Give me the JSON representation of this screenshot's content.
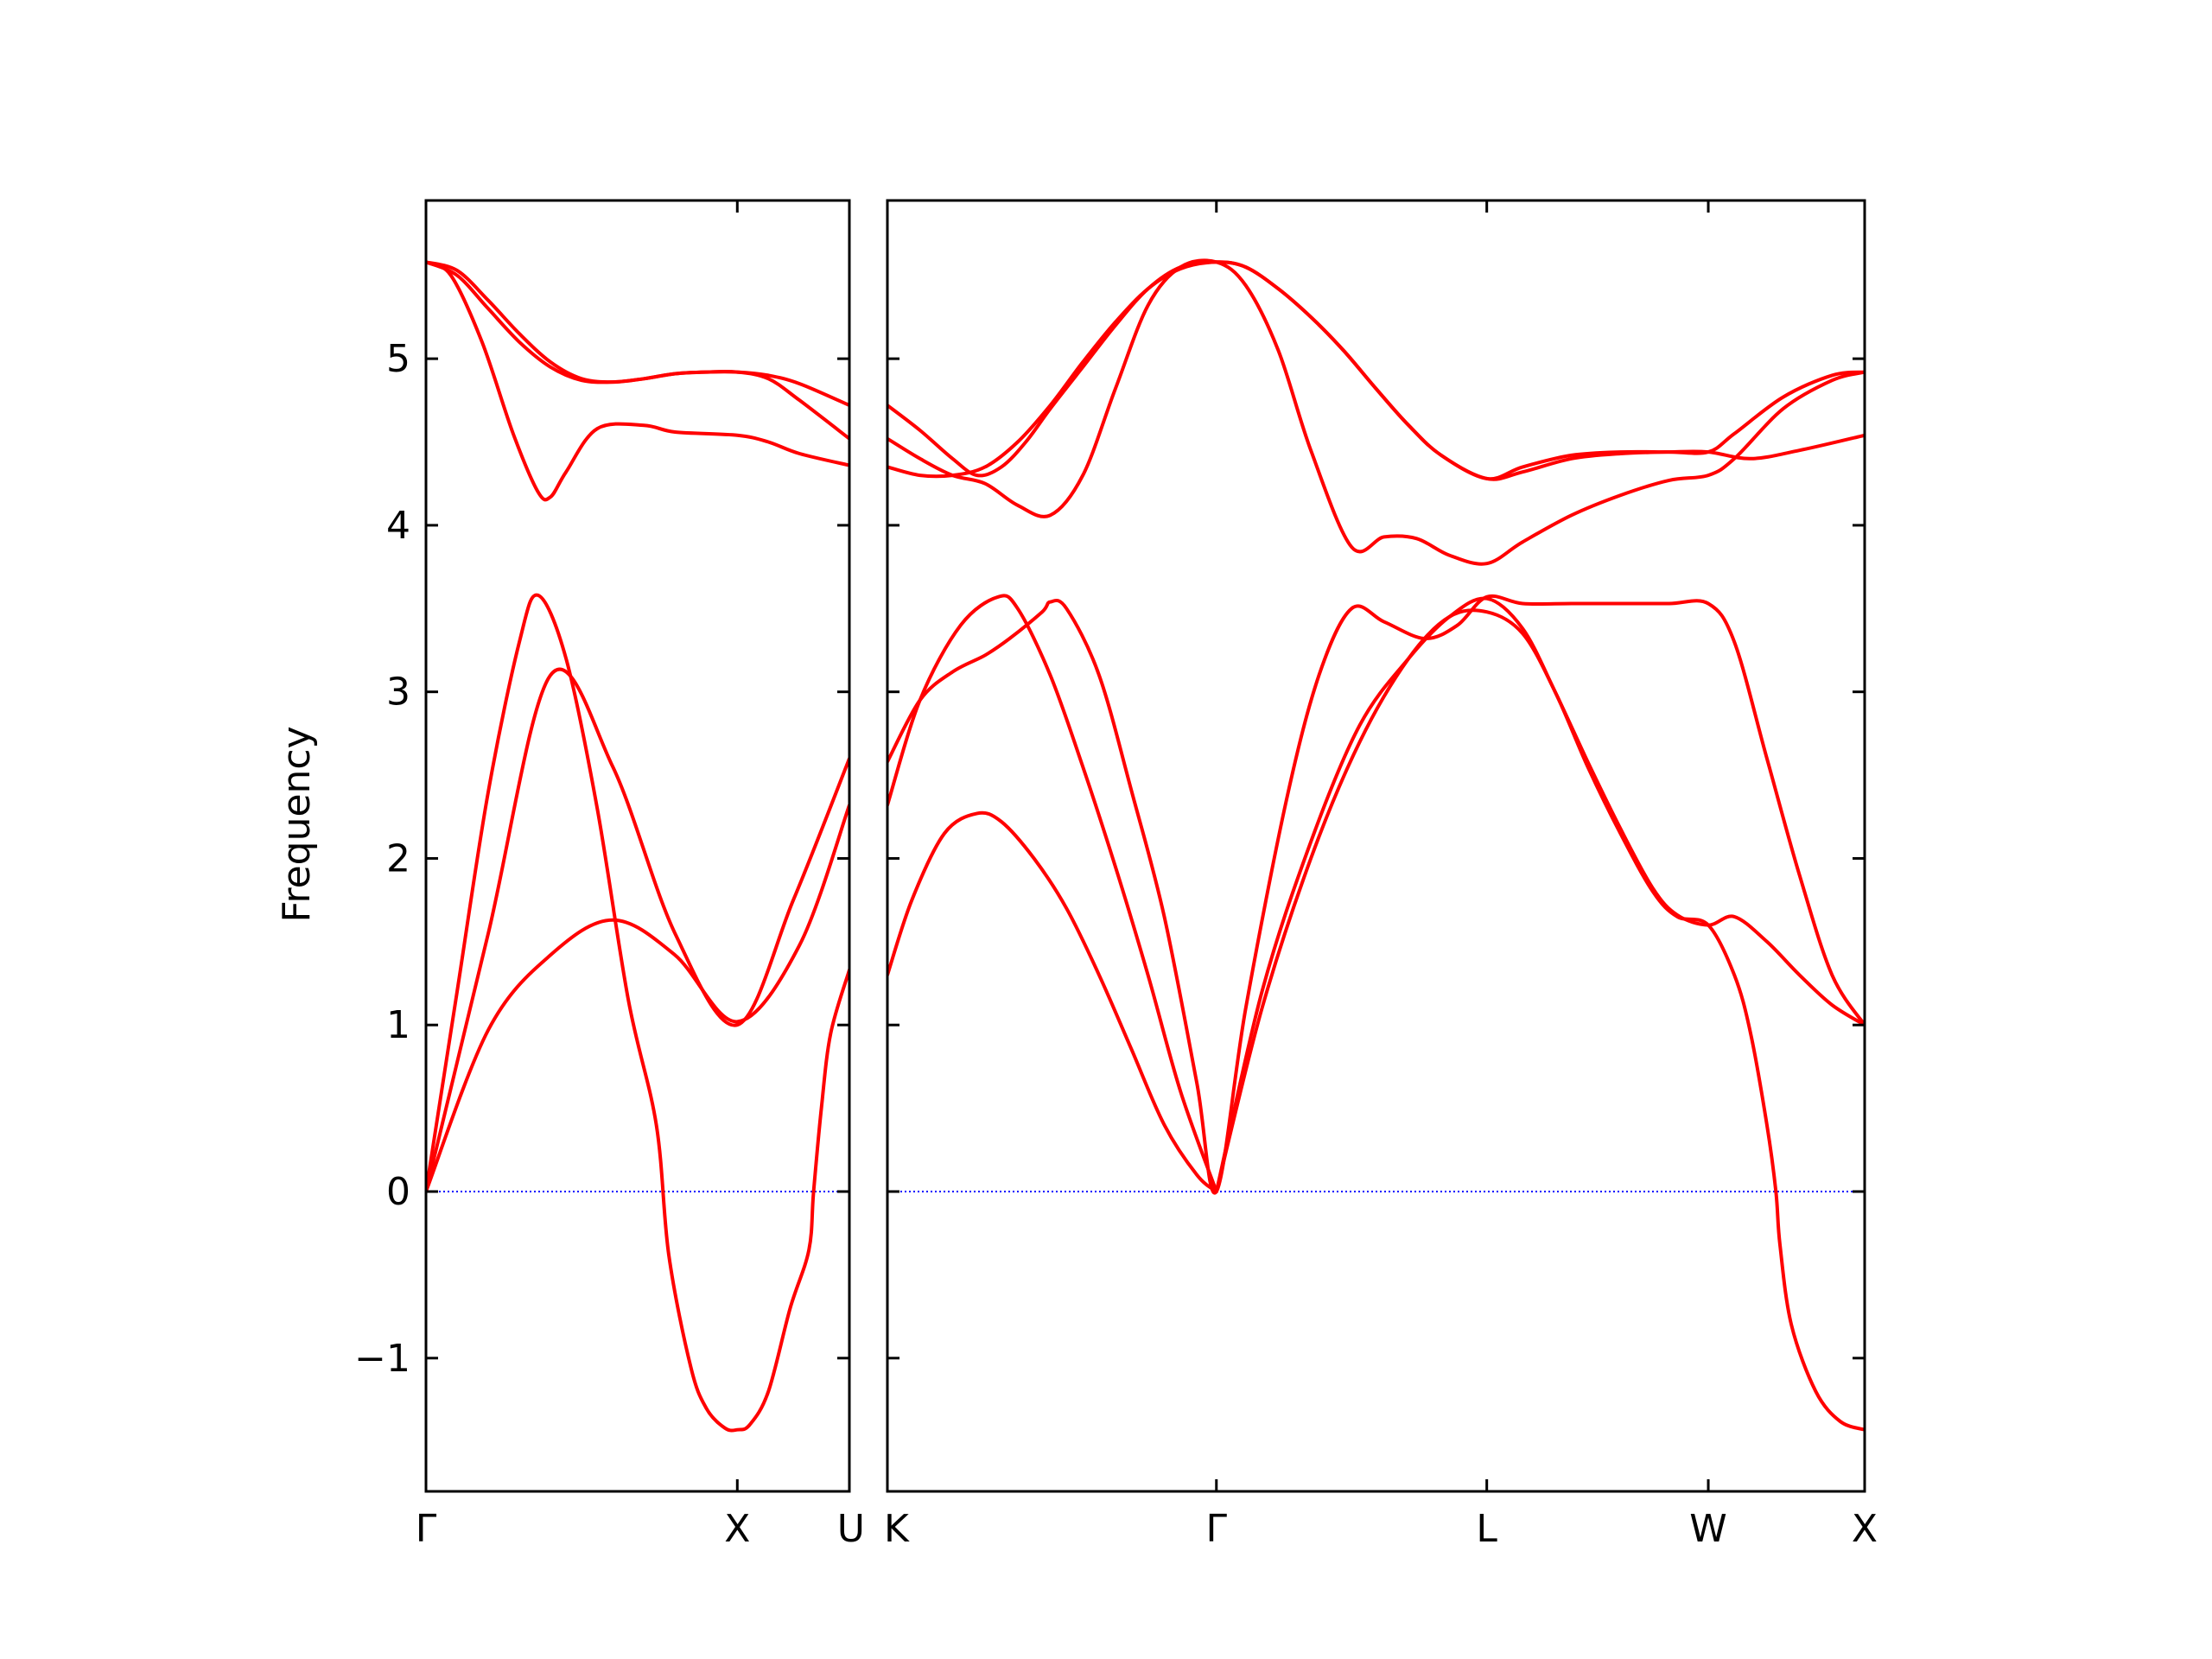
{
  "chart_data": {
    "type": "line",
    "ylabel": "Frequency",
    "ylim": [
      -1.8,
      5.95
    ],
    "yticks": [
      -1,
      0,
      1,
      2,
      3,
      4,
      5
    ],
    "ytick_labels": [
      "−1",
      "0",
      "1",
      "2",
      "3",
      "4",
      "5"
    ],
    "line_color": "#ff0000",
    "zero_line_color": "#0000ff",
    "panels": [
      {
        "name": "panel-gamma-x-u",
        "xlim": [
          0,
          1.36
        ],
        "xticks": [
          {
            "pos": 0,
            "label": "Γ",
            "anchor": "middle"
          },
          {
            "pos": 1.0,
            "label": "X",
            "anchor": "middle"
          },
          {
            "pos": 1.36,
            "label": "U",
            "anchor": "end"
          }
        ],
        "bands": [
          {
            "x": [
              0,
              0.2,
              0.4,
              0.6,
              0.8,
              1.0,
              1.2,
              1.36
            ],
            "y": [
              0,
              0.97,
              1.42,
              1.63,
              1.42,
              1.02,
              1.48,
              2.32
            ]
          },
          {
            "x": [
              0,
              0.1,
              0.2,
              0.3,
              0.36,
              0.45,
              0.55,
              0.65,
              0.74,
              0.78,
              0.85,
              0.9,
              0.96,
              1.0,
              1.04,
              1.1,
              1.17,
              1.23,
              1.245,
              1.27,
              1.3,
              1.36
            ],
            "y": [
              0,
              1.2,
              2.4,
              3.3,
              3.58,
              3.2,
              2.3,
              1.15,
              0.4,
              -0.38,
              -1.05,
              -1.3,
              -1.42,
              -1.43,
              -1.4,
              -1.2,
              -0.7,
              -0.35,
              0,
              0.5,
              0.95,
              1.33
            ]
          },
          {
            "x": [
              0,
              0.2,
              0.4,
              0.6,
              0.8,
              1.0,
              1.18,
              1.36
            ],
            "y": [
              0,
              1.55,
              3.1,
              2.55,
              1.55,
              1.0,
              1.75,
              2.6
            ]
          },
          {
            "x": [
              0,
              0.08,
              0.18,
              0.28,
              0.36,
              0.4,
              0.45,
              0.55,
              0.7,
              0.8,
              1.0,
              1.1,
              1.2,
              1.36
            ],
            "y": [
              5.58,
              5.5,
              5.1,
              4.55,
              4.2,
              4.17,
              4.32,
              4.58,
              4.6,
              4.56,
              4.54,
              4.5,
              4.43,
              4.36
            ]
          },
          {
            "x": [
              0,
              0.1,
              0.2,
              0.3,
              0.4,
              0.5,
              0.6,
              0.7,
              0.8,
              0.9,
              1.0,
              1.1,
              1.2,
              1.36
            ],
            "y": [
              5.58,
              5.5,
              5.3,
              5.1,
              4.95,
              4.87,
              4.86,
              4.88,
              4.91,
              4.92,
              4.92,
              4.88,
              4.75,
              4.52
            ]
          },
          {
            "x": [
              0,
              0.1,
              0.2,
              0.3,
              0.4,
              0.5,
              0.6,
              0.7,
              0.8,
              0.9,
              1.0,
              1.1,
              1.2,
              1.36
            ],
            "y": [
              5.58,
              5.53,
              5.35,
              5.15,
              4.98,
              4.88,
              4.86,
              4.88,
              4.91,
              4.92,
              4.92,
              4.9,
              4.85,
              4.72
            ]
          }
        ]
      },
      {
        "name": "panel-k-gamma-l-w-x",
        "xlim": [
          0,
          6.0
        ],
        "xticks": [
          {
            "pos": 0,
            "label": "K",
            "anchor": "start"
          },
          {
            "pos": 2.02,
            "label": "Γ",
            "anchor": "middle"
          },
          {
            "pos": 3.68,
            "label": "L",
            "anchor": "middle"
          },
          {
            "pos": 5.04,
            "label": "W",
            "anchor": "middle"
          },
          {
            "pos": 6.0,
            "label": "X",
            "anchor": "middle"
          }
        ],
        "bands": [
          {
            "x": [
              0,
              0.15,
              0.35,
              0.55,
              0.7,
              0.9,
              1.1,
              1.3,
              1.5,
              1.7,
              1.9,
              2.02
            ],
            "y": [
              1.3,
              1.75,
              2.15,
              2.27,
              2.22,
              2.0,
              1.7,
              1.3,
              0.85,
              0.4,
              0.1,
              0
            ]
          },
          {
            "x": [
              2.02,
              2.3,
              2.6,
              2.9,
              3.2,
              3.45,
              3.68,
              3.9,
              4.1,
              4.3,
              4.5,
              4.7,
              4.85,
              5.04,
              5.2,
              5.3,
              5.4,
              5.455,
              5.48,
              5.55,
              5.7,
              5.85,
              6.0
            ],
            "y": [
              0,
              1.1,
              2.0,
              2.7,
              3.2,
              3.45,
              3.48,
              3.35,
              3.0,
              2.55,
              2.15,
              1.8,
              1.65,
              1.6,
              1.3,
              0.95,
              0.4,
              0,
              -0.32,
              -0.8,
              -1.2,
              -1.38,
              -1.43
            ]
          },
          {
            "x": [
              0,
              0.2,
              0.45,
              0.68,
              0.8,
              1.0,
              1.2,
              1.4,
              1.6,
              1.8,
              2.02
            ],
            "y": [
              2.32,
              2.95,
              3.4,
              3.57,
              3.5,
              3.1,
              2.55,
              1.95,
              1.3,
              0.6,
              0
            ]
          },
          {
            "x": [
              2.02,
              2.3,
              2.6,
              2.9,
              3.2,
              3.45,
              3.68,
              3.9,
              4.1,
              4.3,
              4.5,
              4.7,
              4.85,
              5.04,
              5.2,
              5.4,
              5.6,
              5.8,
              6.0
            ],
            "y": [
              0,
              1.2,
              2.1,
              2.8,
              3.2,
              3.45,
              3.56,
              3.38,
              3.0,
              2.58,
              2.18,
              1.82,
              1.66,
              1.6,
              1.65,
              1.5,
              1.3,
              1.12,
              1.0
            ]
          },
          {
            "x": [
              0,
              0.2,
              0.4,
              0.6,
              0.75,
              0.95,
              1.0,
              1.1,
              1.3,
              1.5,
              1.7,
              1.9,
              2.02,
              2.2,
              2.45,
              2.65,
              2.85,
              3.05,
              3.3,
              3.5,
              3.68,
              3.9,
              4.2,
              4.5,
              4.8,
              5.04,
              5.2,
              5.4,
              5.6,
              5.8,
              6.0
            ],
            "y": [
              2.58,
              2.95,
              3.12,
              3.22,
              3.32,
              3.48,
              3.54,
              3.5,
              3.1,
              2.4,
              1.65,
              0.65,
              0,
              1.1,
              2.35,
              3.1,
              3.5,
              3.42,
              3.32,
              3.4,
              3.57,
              3.53,
              3.53,
              3.53,
              3.53,
              3.53,
              3.3,
              2.6,
              1.9,
              1.3,
              1.0
            ]
          },
          {
            "x": [
              0,
              0.2,
              0.4,
              0.6,
              0.8,
              1.0,
              1.2,
              1.4,
              1.6,
              1.8,
              2.02,
              2.2,
              2.4,
              2.6,
              2.8,
              3.0,
              3.2,
              3.4,
              3.68,
              3.9,
              4.2,
              4.5,
              4.8,
              5.04,
              5.3,
              5.6,
              6.0
            ],
            "y": [
              4.35,
              4.3,
              4.3,
              4.35,
              4.5,
              4.72,
              4.98,
              5.22,
              5.42,
              5.54,
              5.58,
              5.55,
              5.42,
              5.25,
              5.05,
              4.82,
              4.6,
              4.42,
              4.28,
              4.32,
              4.4,
              4.43,
              4.44,
              4.44,
              4.4,
              4.45,
              4.54
            ]
          },
          {
            "x": [
              0,
              0.2,
              0.4,
              0.6,
              0.8,
              1.0,
              1.2,
              1.4,
              1.6,
              1.8,
              2.02,
              2.2,
              2.4,
              2.6,
              2.85,
              3.05,
              3.25,
              3.45,
              3.68,
              3.9,
              4.2,
              4.5,
              4.8,
              5.04,
              5.2,
              5.5,
              5.8,
              6.0
            ],
            "y": [
              4.52,
              4.4,
              4.3,
              4.25,
              4.12,
              4.06,
              4.3,
              4.82,
              5.32,
              5.55,
              5.58,
              5.44,
              5.05,
              4.45,
              3.87,
              3.93,
              3.92,
              3.82,
              3.77,
              3.9,
              4.06,
              4.18,
              4.27,
              4.3,
              4.4,
              4.7,
              4.87,
              4.92
            ]
          },
          {
            "x": [
              0,
              0.2,
              0.4,
              0.55,
              0.7,
              0.85,
              1.0,
              1.2,
              1.4,
              1.6,
              1.8,
              2.02,
              2.2,
              2.4,
              2.6,
              2.8,
              3.0,
              3.2,
              3.4,
              3.68,
              3.9,
              4.2,
              4.5,
              4.8,
              5.04,
              5.2,
              5.5,
              5.8,
              6.0
            ],
            "y": [
              4.72,
              4.57,
              4.4,
              4.3,
              4.35,
              4.5,
              4.7,
              4.95,
              5.2,
              5.42,
              5.55,
              5.58,
              5.55,
              5.42,
              5.25,
              5.05,
              4.82,
              4.6,
              4.42,
              4.28,
              4.35,
              4.42,
              4.44,
              4.44,
              4.44,
              4.55,
              4.77,
              4.9,
              4.92
            ]
          }
        ]
      }
    ]
  }
}
